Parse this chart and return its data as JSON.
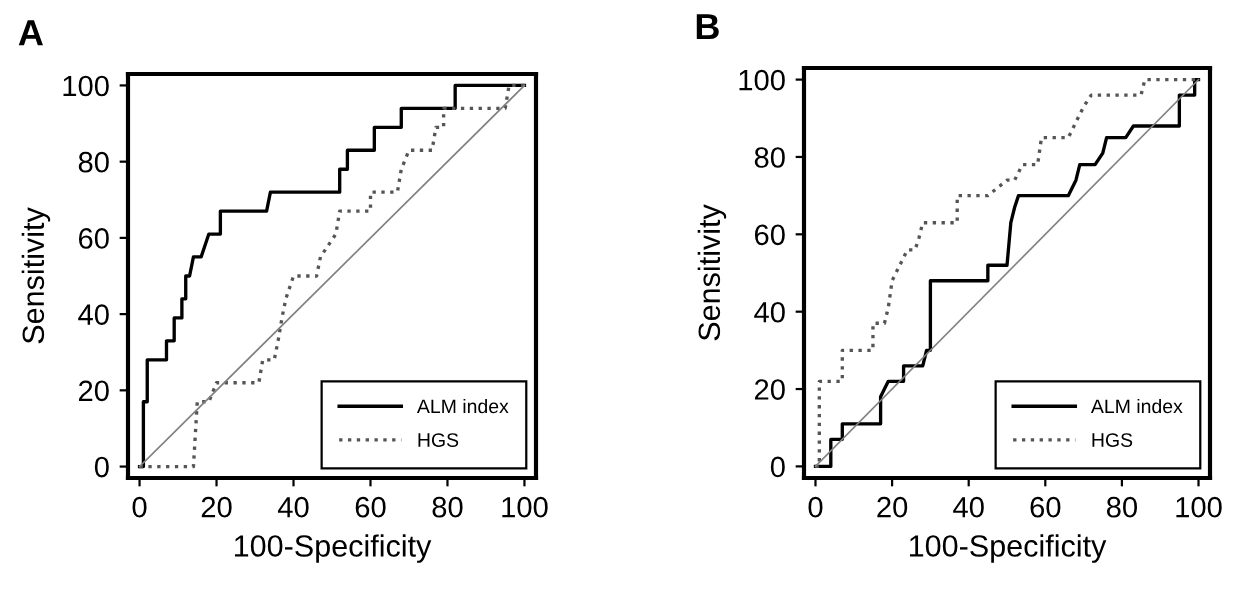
{
  "chart_data": [
    {
      "type": "line",
      "title": "A",
      "xlabel": "100-Specificity",
      "ylabel": "Sensitivity",
      "xlim": [
        -3,
        103
      ],
      "ylim": [
        -3,
        103
      ],
      "xticks": [
        0,
        20,
        40,
        60,
        80,
        100
      ],
      "yticks": [
        0,
        20,
        40,
        60,
        80,
        100
      ],
      "grid": false,
      "legend": "bottom right",
      "marker": "none",
      "series": [
        {
          "name": "ALM index",
          "color": "#000000",
          "line_style": "solid",
          "x": [
            0,
            1,
            1,
            2,
            2,
            7,
            7,
            9,
            9,
            11,
            11,
            12,
            12,
            13,
            14,
            16,
            17,
            18,
            21,
            21,
            33,
            34,
            52,
            52,
            54,
            54,
            61,
            61,
            68,
            68,
            82,
            82,
            100
          ],
          "values": [
            0,
            0,
            17,
            17,
            28,
            28,
            33,
            33,
            39,
            39,
            44,
            44,
            50,
            50,
            55,
            55,
            58,
            61,
            61,
            67,
            67,
            72,
            72,
            78,
            78,
            83,
            83,
            89,
            89,
            94,
            94,
            100,
            100
          ]
        },
        {
          "name": "HGS",
          "color": "#555555",
          "line_style": "dotted",
          "x": [
            0,
            14,
            15,
            18,
            20,
            31,
            32,
            35,
            36,
            37,
            38,
            40,
            46,
            47,
            49,
            51,
            52,
            60,
            60,
            67,
            68,
            70,
            76,
            77,
            79,
            79,
            95,
            96,
            100
          ],
          "values": [
            0,
            0,
            17,
            17,
            22,
            22,
            28,
            28,
            33,
            39,
            44,
            50,
            50,
            55,
            58,
            61,
            67,
            67,
            72,
            72,
            78,
            83,
            83,
            89,
            89,
            94,
            94,
            100,
            100
          ]
        },
        {
          "color": "#808080",
          "line_style": "solid",
          "x": [
            0,
            100
          ],
          "values": [
            0,
            100
          ]
        }
      ]
    },
    {
      "type": "line",
      "title": "B",
      "xlabel": "100-Specificity",
      "ylabel": "Sensitivity",
      "xlim": [
        -3,
        103
      ],
      "ylim": [
        -3,
        103
      ],
      "xticks": [
        0,
        20,
        40,
        60,
        80,
        100
      ],
      "yticks": [
        0,
        20,
        40,
        60,
        80,
        100
      ],
      "grid": false,
      "legend": "bottom right",
      "marker": "none",
      "series": [
        {
          "name": "ALM index",
          "color": "#000000",
          "line_style": "solid",
          "x": [
            0,
            4,
            4,
            7,
            7,
            17,
            17,
            19,
            23,
            23,
            28,
            29,
            30,
            30,
            45,
            45,
            50,
            51,
            52,
            53,
            66,
            68,
            69,
            73,
            75,
            76,
            81,
            83,
            95,
            95,
            99,
            99,
            100
          ],
          "values": [
            0,
            0,
            7,
            7,
            11,
            11,
            18,
            22,
            22,
            26,
            26,
            30,
            30,
            48,
            48,
            52,
            52,
            63,
            67,
            70,
            70,
            74,
            78,
            78,
            81,
            85,
            85,
            88,
            88,
            96,
            96,
            100,
            100
          ]
        },
        {
          "name": "HGS",
          "color": "#555555",
          "line_style": "dotted",
          "x": [
            0,
            1,
            1,
            7,
            7,
            15,
            15,
            18,
            19,
            20,
            22,
            24,
            26,
            27,
            28,
            37,
            37,
            45,
            50,
            52,
            54,
            58,
            59,
            66,
            68,
            70,
            72,
            85,
            86,
            100
          ],
          "values": [
            0,
            0,
            22,
            22,
            30,
            30,
            37,
            37,
            41,
            48,
            52,
            56,
            56,
            59,
            63,
            63,
            70,
            70,
            74,
            74,
            78,
            78,
            85,
            85,
            89,
            93,
            96,
            96,
            100,
            100
          ]
        },
        {
          "color": "#808080",
          "line_style": "solid",
          "x": [
            0,
            100
          ],
          "values": [
            0,
            100
          ]
        }
      ]
    }
  ]
}
